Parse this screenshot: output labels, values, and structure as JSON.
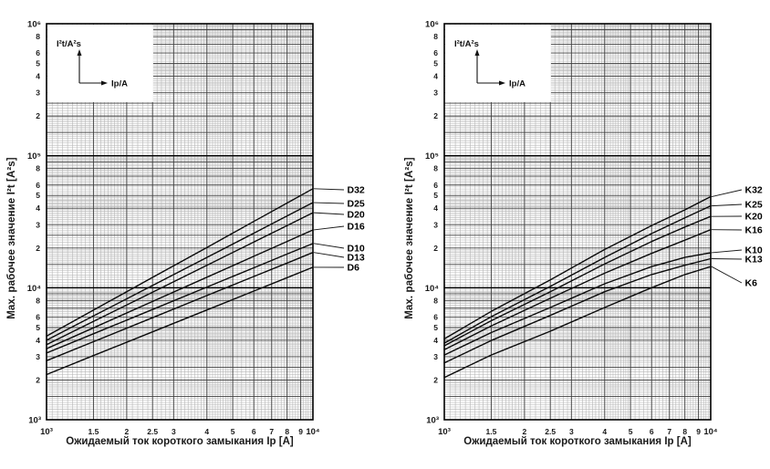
{
  "page": {
    "background": "#ffffff",
    "text_color": "#1a1a1a",
    "curve_color": "#0a0a0a"
  },
  "chart_data": [
    {
      "id": "d-curves",
      "type": "line",
      "title": "",
      "x_scale": "log",
      "y_scale": "log",
      "xlim": [
        1000,
        10000
      ],
      "ylim": [
        1000,
        1000000
      ],
      "grid": "log-paper",
      "xlabel": "Ожидаемый ток короткого замыкания Ip [A]",
      "ylabel": "Max. рабочее значение I²t [A²s]",
      "inset_legend": {
        "y_axis_label": "I²t/A²s",
        "x_axis_label": "Ip/A"
      },
      "x_ticks": [
        [
          1000,
          "10³"
        ],
        [
          1500,
          "1.5"
        ],
        [
          2000,
          "2"
        ],
        [
          2500,
          "2.5"
        ],
        [
          3000,
          "3"
        ],
        [
          4000,
          "4"
        ],
        [
          5000,
          "5"
        ],
        [
          6000,
          "6"
        ],
        [
          7000,
          "7"
        ],
        [
          8000,
          "8"
        ],
        [
          9000,
          "9"
        ],
        [
          10000,
          "10⁴"
        ]
      ],
      "y_decade_ticks": [
        [
          1000000,
          "10⁶"
        ],
        [
          100000,
          "10⁵"
        ],
        [
          10000,
          "10⁴"
        ],
        [
          1000,
          "10³"
        ]
      ],
      "y_minor_tick_digits": [
        8,
        6,
        5,
        4,
        3,
        2
      ],
      "x": [
        1000,
        1500,
        2500,
        4000,
        6000,
        8000,
        10000
      ],
      "series": [
        {
          "name": "D32",
          "values": [
            4300,
            6760,
            11970,
            20180,
            31770,
            43850,
            56230
          ]
        },
        {
          "name": "D25",
          "values": [
            4000,
            6110,
            10400,
            16980,
            25880,
            34990,
            44160
          ]
        },
        {
          "name": "D20",
          "values": [
            3700,
            5550,
            9250,
            14790,
            22180,
            29580,
            37000
          ]
        },
        {
          "name": "D16",
          "values": [
            3450,
            4970,
            7870,
            12020,
            17300,
            22440,
            27420
          ]
        },
        {
          "name": "D10",
          "values": [
            3200,
            4480,
            6840,
            10120,
            14160,
            17990,
            21630
          ]
        },
        {
          "name": "D13",
          "values": [
            2800,
            3900,
            5930,
            8730,
            12160,
            15380,
            18490
          ]
        },
        {
          "name": "D6",
          "values": [
            2200,
            3060,
            4630,
            6780,
            9440,
            11920,
            14290
          ]
        }
      ]
    },
    {
      "id": "k-curves",
      "type": "line",
      "title": "",
      "x_scale": "log",
      "y_scale": "log",
      "xlim": [
        1000,
        10000
      ],
      "ylim": [
        1000,
        1000000
      ],
      "grid": "log-paper",
      "xlabel": "Ожидаемый ток короткого замыкания Ip [A]",
      "ylabel": "Max. рабочее значение I²t [A²s]",
      "inset_legend": {
        "y_axis_label": "I²t/A²s",
        "x_axis_label": "Ip/A"
      },
      "x_ticks": [
        [
          1000,
          "10³"
        ],
        [
          1500,
          "1.5"
        ],
        [
          2000,
          "2"
        ],
        [
          2500,
          "2.5"
        ],
        [
          3000,
          "3"
        ],
        [
          4000,
          "4"
        ],
        [
          5000,
          "5"
        ],
        [
          6000,
          "6"
        ],
        [
          7000,
          "7"
        ],
        [
          8000,
          "8"
        ],
        [
          9000,
          "9"
        ],
        [
          10000,
          "10⁴"
        ]
      ],
      "y_decade_ticks": [
        [
          1000000,
          "10⁶"
        ],
        [
          100000,
          "10⁵"
        ],
        [
          10000,
          "10⁴"
        ],
        [
          1000,
          "10³"
        ]
      ],
      "y_minor_tick_digits": [
        8,
        6,
        5,
        4,
        3,
        2
      ],
      "x": [
        1000,
        1500,
        2500,
        4000,
        6000,
        8000,
        10000
      ],
      "series": [
        {
          "name": "K32",
          "values": [
            4100,
            6610,
            11480,
            19500,
            29510,
            38900,
            48980
          ]
        },
        {
          "name": "K25",
          "values": [
            3800,
            6030,
            10230,
            16980,
            25700,
            33880,
            41690
          ]
        },
        {
          "name": "K20",
          "values": [
            3630,
            5620,
            9330,
            15140,
            22390,
            28840,
            34670
          ]
        },
        {
          "name": "K16",
          "values": [
            3390,
            5130,
            8320,
            12880,
            18200,
            22910,
            27540
          ]
        },
        {
          "name": "K10",
          "values": [
            3090,
            4570,
            7080,
            10720,
            14450,
            16980,
            18410
          ]
        },
        {
          "name": "K13",
          "values": [
            2690,
            3980,
            6170,
            9330,
            12590,
            14790,
            16600
          ]
        },
        {
          "name": "K6",
          "values": [
            2090,
            3090,
            4680,
            7080,
            10000,
            12590,
            14450
          ]
        }
      ]
    }
  ]
}
